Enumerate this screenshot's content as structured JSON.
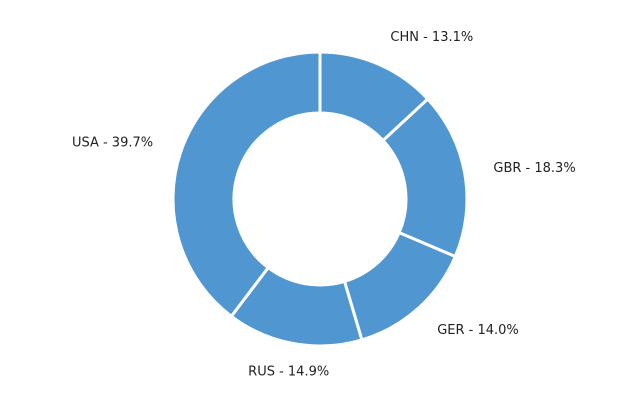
{
  "chart_data": {
    "type": "pie",
    "variant": "donut",
    "color": "#5097d1",
    "separator_color": "#ffffff",
    "start": "top",
    "direction": "clockwise",
    "slices": [
      {
        "label": "CHN",
        "value": 13.1,
        "text": "CHN - 13.1%"
      },
      {
        "label": "GBR",
        "value": 18.3,
        "text": "GBR - 18.3%"
      },
      {
        "label": "GER",
        "value": 14.0,
        "text": "GER - 14.0%"
      },
      {
        "label": "RUS",
        "value": 14.9,
        "text": "RUS - 14.9%"
      },
      {
        "label": "USA",
        "value": 39.7,
        "text": "USA - 39.7%"
      }
    ]
  }
}
